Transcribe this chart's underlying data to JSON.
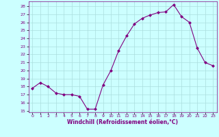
{
  "x": [
    0,
    1,
    2,
    3,
    4,
    5,
    6,
    7,
    8,
    9,
    10,
    11,
    12,
    13,
    14,
    15,
    16,
    17,
    18,
    19,
    20,
    21,
    22,
    23
  ],
  "y": [
    17.8,
    18.5,
    18.0,
    17.2,
    17.0,
    17.0,
    16.8,
    15.2,
    15.2,
    18.2,
    20.0,
    22.5,
    24.3,
    25.8,
    26.5,
    26.9,
    27.2,
    27.3,
    28.2,
    26.7,
    26.0,
    22.8,
    21.0,
    20.6
  ],
  "line_color": "#800080",
  "marker": "D",
  "marker_size": 2,
  "bg_color": "#ccffff",
  "grid_color": "#aadddd",
  "xlabel": "Windchill (Refroidissement éolien,°C)",
  "yticks": [
    15,
    16,
    17,
    18,
    19,
    20,
    21,
    22,
    23,
    24,
    25,
    26,
    27,
    28
  ],
  "ylim": [
    14.8,
    28.6
  ],
  "xlim": [
    -0.5,
    23.5
  ]
}
